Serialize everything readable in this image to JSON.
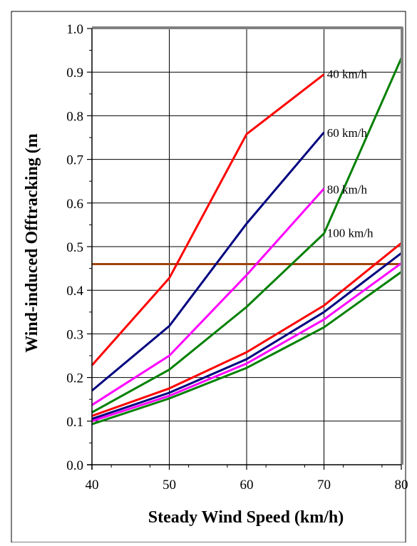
{
  "chart_data": {
    "type": "line",
    "xlabel": "Steady Wind Speed (km/h)",
    "ylabel": "Wind-induced Offtracking (m",
    "xlim": [
      40,
      80
    ],
    "ylim": [
      0.0,
      1.0
    ],
    "x_ticks": [
      "40",
      "50",
      "60",
      "70",
      "80"
    ],
    "y_ticks": [
      "0.0",
      "0.1",
      "0.2",
      "0.3",
      "0.4",
      "0.5",
      "0.6",
      "0.7",
      "0.8",
      "0.9",
      "1.0"
    ],
    "grid": true,
    "reference_line": {
      "y": 0.46,
      "color": "#a0440c"
    },
    "annotations": [
      {
        "text": "40 km/h",
        "x": 70.3,
        "y": 0.895
      },
      {
        "text": "60 km/h",
        "x": 70.3,
        "y": 0.76
      },
      {
        "text": "80 km/h",
        "x": 70.3,
        "y": 0.63
      },
      {
        "text": "100 km/h",
        "x": 70.3,
        "y": 0.53
      }
    ],
    "series": [
      {
        "color": "#ff0000",
        "x": [
          40,
          50,
          60,
          70
        ],
        "values": [
          0.228,
          0.428,
          0.758,
          0.895
        ]
      },
      {
        "color": "#000080",
        "x": [
          40,
          50,
          60,
          70
        ],
        "values": [
          0.17,
          0.318,
          0.553,
          0.762
        ]
      },
      {
        "color": "#ff00ff",
        "x": [
          40,
          50,
          60,
          70
        ],
        "values": [
          0.137,
          0.25,
          0.435,
          0.633
        ]
      },
      {
        "color": "#008000",
        "x": [
          40,
          50,
          60,
          70,
          80
        ],
        "values": [
          0.12,
          0.218,
          0.362,
          0.53,
          0.932
        ]
      },
      {
        "color": "#ff0000",
        "x": [
          40,
          50,
          60,
          70,
          80
        ],
        "values": [
          0.112,
          0.175,
          0.258,
          0.365,
          0.508
        ]
      },
      {
        "color": "#000080",
        "x": [
          40,
          50,
          60,
          70,
          80
        ],
        "values": [
          0.105,
          0.165,
          0.242,
          0.35,
          0.485
        ]
      },
      {
        "color": "#ff00ff",
        "x": [
          40,
          50,
          60,
          70,
          80
        ],
        "values": [
          0.1,
          0.158,
          0.232,
          0.333,
          0.462
        ]
      },
      {
        "color": "#008000",
        "x": [
          40,
          50,
          60,
          70,
          80
        ],
        "values": [
          0.093,
          0.152,
          0.222,
          0.315,
          0.442
        ]
      }
    ]
  }
}
